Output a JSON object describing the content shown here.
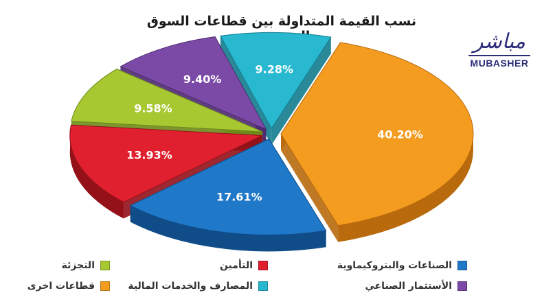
{
  "title": "نسب القيمة المتداولة بين قطاعات السوق السعودي",
  "logo": {
    "arabic": "مباشر",
    "english": "MUBASHER"
  },
  "chart_data": {
    "type": "pie",
    "title": "نسب القيمة المتداولة بين قطاعات السوق السعودي",
    "slices": [
      {
        "name": "قطاعات اخرى",
        "value": 40.2,
        "label": "40.20%",
        "color": "#f39c1f",
        "dark": "#b86a0c"
      },
      {
        "name": "الصناعات والبتروكيماوية",
        "value": 17.61,
        "label": "17.61%",
        "color": "#1f78c8",
        "dark": "#0f4c88"
      },
      {
        "name": "التأمين",
        "value": 13.93,
        "label": "13.93%",
        "color": "#e0202e",
        "dark": "#94111a"
      },
      {
        "name": "التجزئة",
        "value": 9.58,
        "label": "9.58%",
        "color": "#a8c832",
        "dark": "#6e8a18"
      },
      {
        "name": "الأستثمار الصناعي",
        "value": 9.4,
        "label": "9.40%",
        "color": "#7b4aa6",
        "dark": "#4e2a70"
      },
      {
        "name": "المصارف والخدمات المالية",
        "value": 9.28,
        "label": "9.28%",
        "color": "#28b8d0",
        "dark": "#137c8e"
      }
    ]
  },
  "legend": {
    "row1": [
      {
        "label": "الصناعات والبتروكيماوية",
        "color": "#1f78c8"
      },
      {
        "label": "التأمين",
        "color": "#e0202e"
      },
      {
        "label": "التجزئة",
        "color": "#a8c832"
      }
    ],
    "row2": [
      {
        "label": "الأستثمار الصناعي",
        "color": "#7b4aa6"
      },
      {
        "label": "المصارف والخدمات المالية",
        "color": "#28b8d0"
      },
      {
        "label": "قطاعات اخرى",
        "color": "#f39c1f"
      }
    ]
  }
}
